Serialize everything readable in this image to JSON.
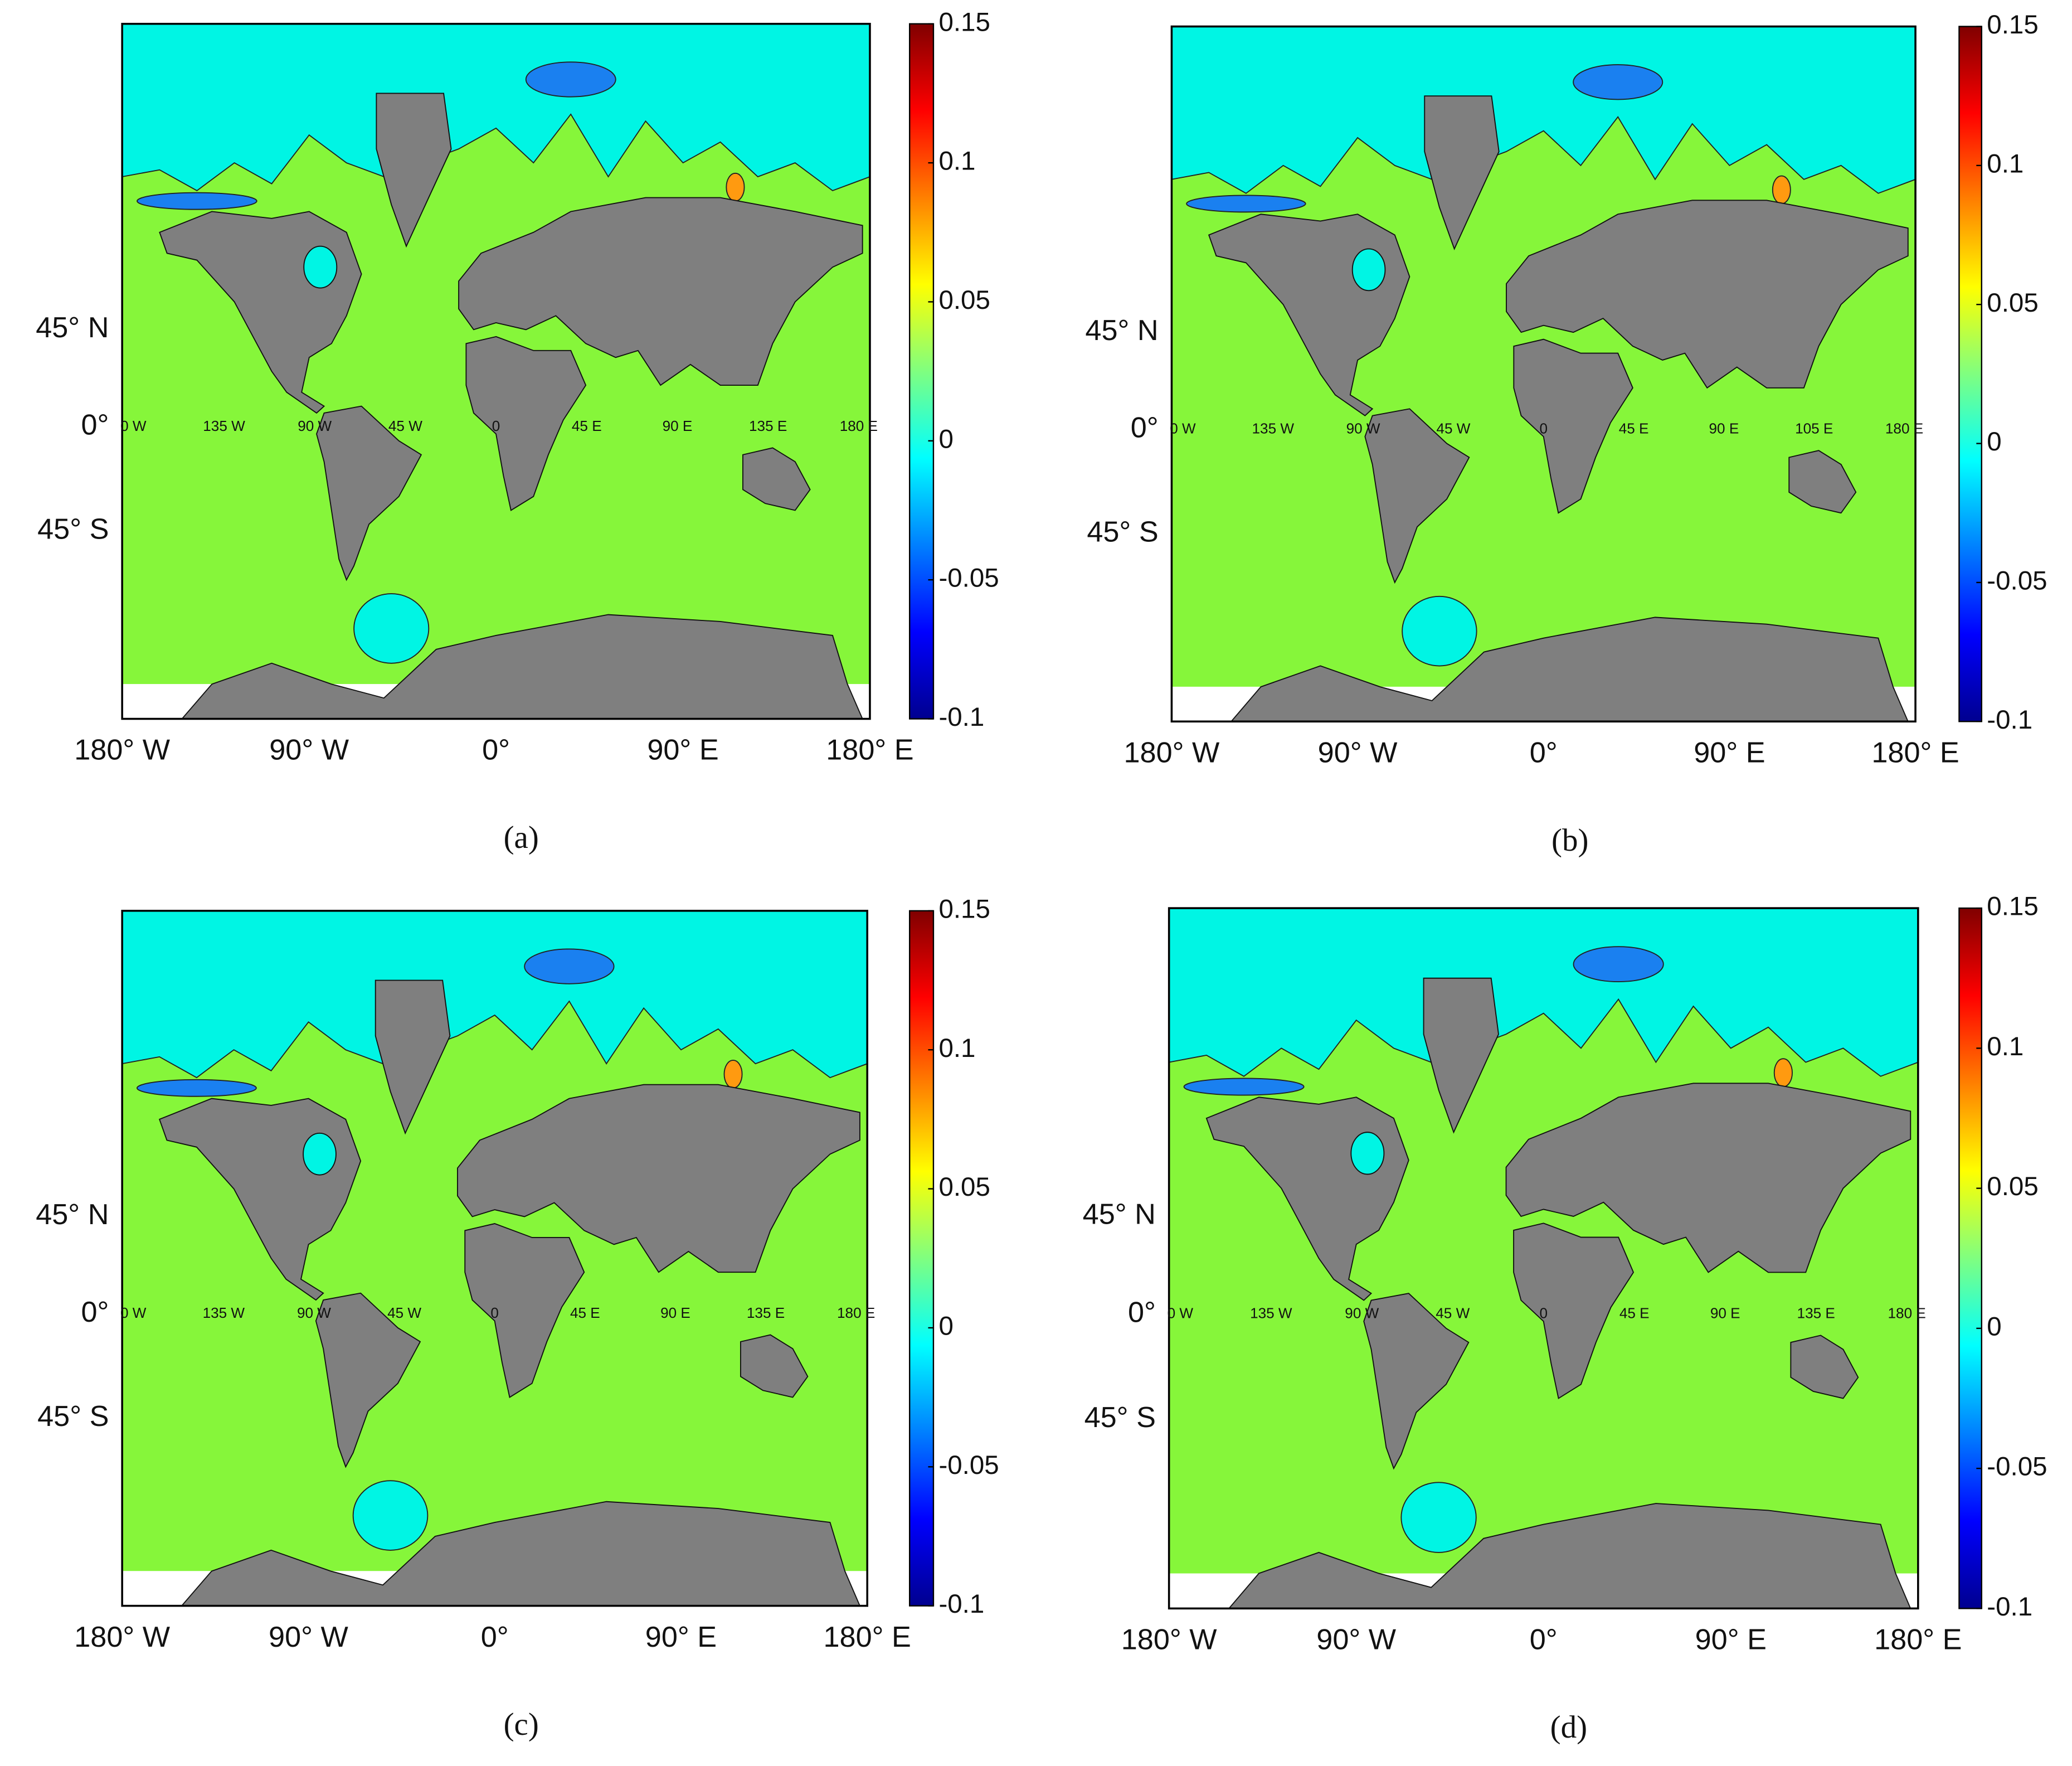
{
  "panels": [
    {
      "caption": "(a)",
      "colorbar": {
        "range": [
          -0.1,
          0.15
        ],
        "ticks": [
          0.15,
          0.1,
          0.05,
          0,
          -0.05,
          -0.1
        ]
      },
      "y_labels": [
        "45° N",
        "0°",
        "45° S"
      ],
      "x_labels": [
        "180° W",
        "90° W",
        "0°",
        "90° E",
        "180° E"
      ],
      "inner_labels": [
        "0 W",
        "135 W",
        "90 W",
        "45 W",
        "0",
        "45 E",
        "90 E",
        "135 E",
        "180 E"
      ]
    },
    {
      "caption": "(b)",
      "colorbar": {
        "range": [
          -0.1,
          0.15
        ],
        "ticks": [
          0.15,
          0.1,
          0.05,
          0,
          -0.05,
          -0.1
        ]
      },
      "y_labels": [
        "45° N",
        "0°",
        "45° S"
      ],
      "x_labels": [
        "180° W",
        "90° W",
        "0°",
        "90° E",
        "180° E"
      ],
      "inner_labels": [
        "0 W",
        "135 W",
        "90 W",
        "45 W",
        "0",
        "45 E",
        "90 E",
        "105 E",
        "180 E"
      ]
    },
    {
      "caption": "(c)",
      "colorbar": {
        "range": [
          -0.1,
          0.15
        ],
        "ticks": [
          0.15,
          0.1,
          0.05,
          0,
          -0.05,
          -0.1
        ]
      },
      "y_labels": [
        "45° N",
        "0°",
        "45° S"
      ],
      "x_labels": [
        "180° W",
        "90° W",
        "0°",
        "90° E",
        "180° E"
      ],
      "inner_labels": [
        "0 W",
        "135 W",
        "90 W",
        "45 W",
        "0",
        "45 E",
        "90 E",
        "135 E",
        "180 E"
      ]
    },
    {
      "caption": "(d)",
      "colorbar": {
        "range": [
          -0.1,
          0.15
        ],
        "ticks": [
          0.15,
          0.1,
          0.05,
          0,
          -0.05,
          -0.1
        ]
      },
      "y_labels": [
        "45° N",
        "0°",
        "45° S"
      ],
      "x_labels": [
        "180° W",
        "90° W",
        "0°",
        "90° E",
        "180° E"
      ],
      "inner_labels": [
        "0 W",
        "135 W",
        "90 W",
        "45 W",
        "0",
        "45 E",
        "90 E",
        "135 E",
        "180 E"
      ]
    }
  ]
}
